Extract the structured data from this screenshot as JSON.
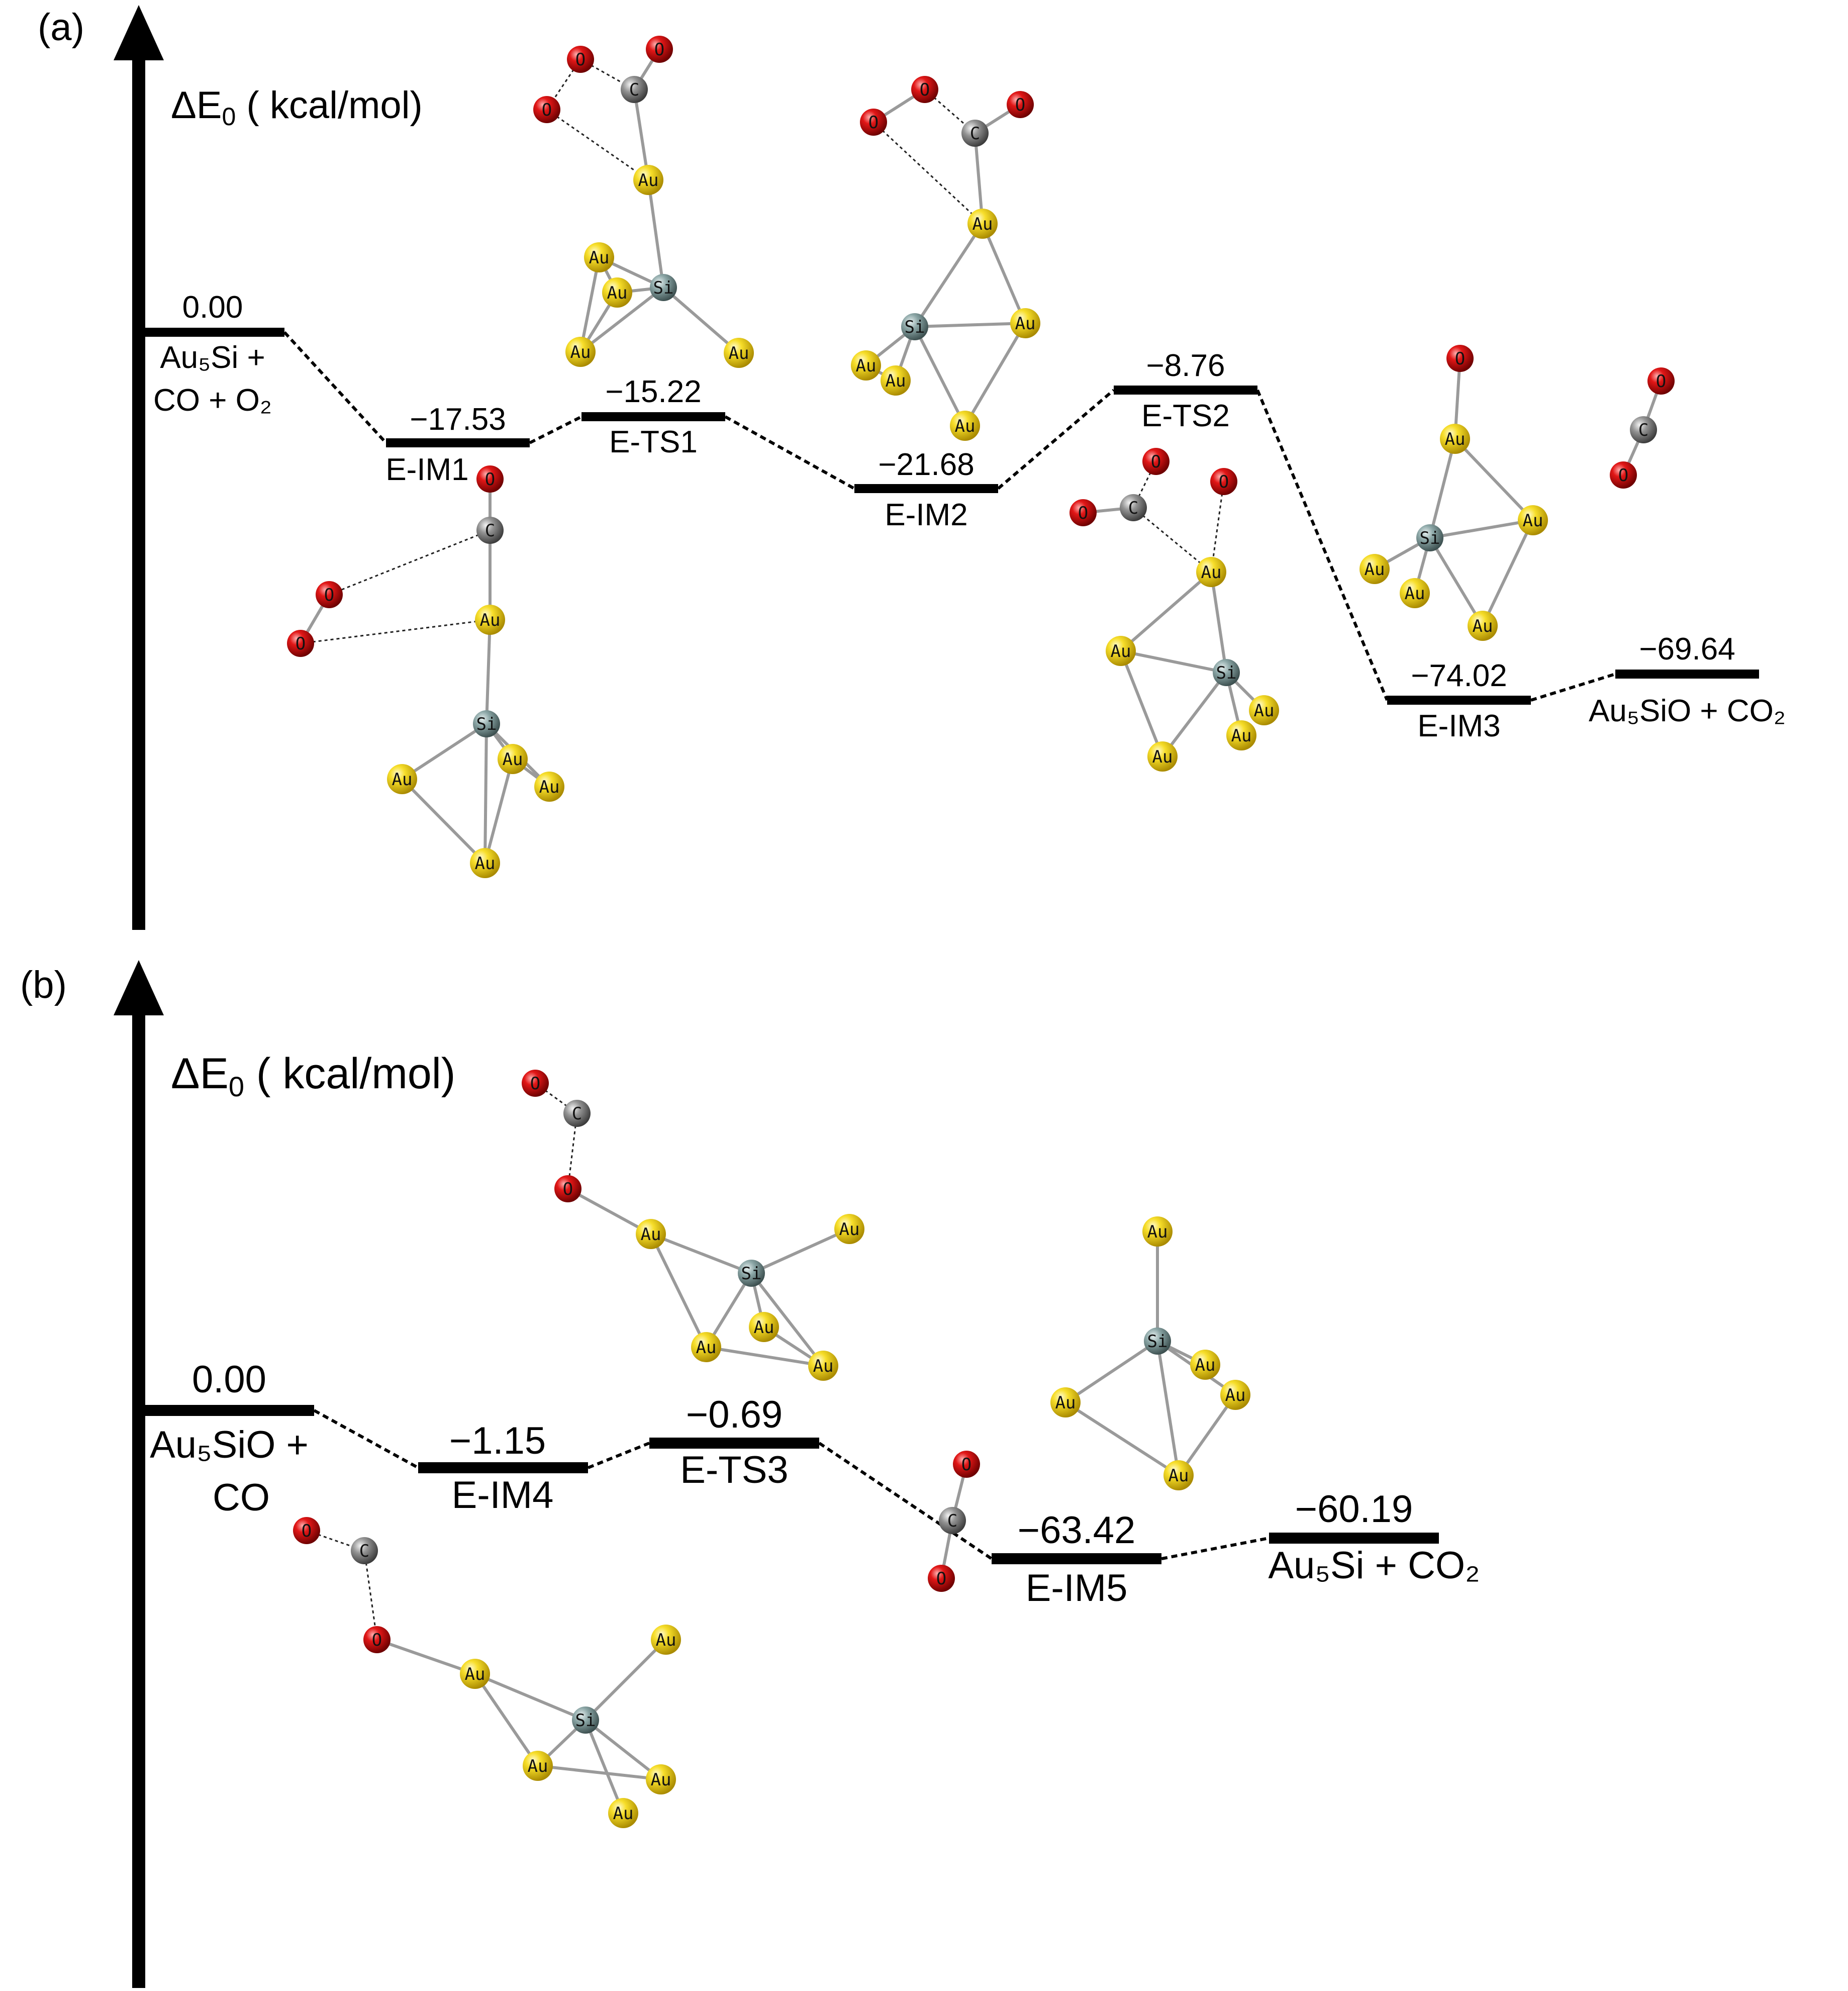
{
  "figure": {
    "panels": [
      {
        "label": "(a)",
        "axis_label": "ΔE",
        "axis_sub": "0",
        "axis_unit": " ( kcal/mol)",
        "levels": [
          {
            "name": "reactants",
            "energy": "0.00",
            "lines": [
              "Au₅Si +",
              "CO + O₂"
            ]
          },
          {
            "name": "E-IM1",
            "energy": "−17.53",
            "lines": [
              "E-IM1"
            ]
          },
          {
            "name": "E-TS1",
            "energy": "−15.22",
            "lines": [
              "E-TS1"
            ]
          },
          {
            "name": "E-IM2",
            "energy": "−21.68",
            "lines": [
              "E-IM2"
            ]
          },
          {
            "name": "E-TS2",
            "energy": "−8.76",
            "lines": [
              "E-TS2"
            ]
          },
          {
            "name": "E-IM3",
            "energy": "−74.02",
            "lines": [
              "E-IM3"
            ]
          },
          {
            "name": "products",
            "energy": "−69.64",
            "lines": [
              "Au₅SiO + CO₂"
            ]
          }
        ]
      },
      {
        "label": "(b)",
        "axis_label": "ΔE",
        "axis_sub": "0",
        "axis_unit": " ( kcal/mol)",
        "levels": [
          {
            "name": "reactants",
            "energy": "0.00",
            "lines": [
              "Au₅SiO +",
              "CO"
            ]
          },
          {
            "name": "E-IM4",
            "energy": "−1.15",
            "lines": [
              "E-IM4"
            ]
          },
          {
            "name": "E-TS3",
            "energy": "−0.69",
            "lines": [
              "E-TS3"
            ]
          },
          {
            "name": "E-IM5",
            "energy": "−63.42",
            "lines": [
              "E-IM5"
            ]
          },
          {
            "name": "products",
            "energy": "−60.19",
            "lines": [
              "Au₅Si + CO₂"
            ]
          }
        ]
      }
    ],
    "atom_labels": {
      "au": "Au",
      "si": "Si",
      "c": "C",
      "o": "O"
    },
    "colors": {
      "au": "#f2d20c",
      "si": "#7f9a9a",
      "c": "#8a8a8a",
      "o": "#d80f0f",
      "line": "#000000"
    }
  }
}
